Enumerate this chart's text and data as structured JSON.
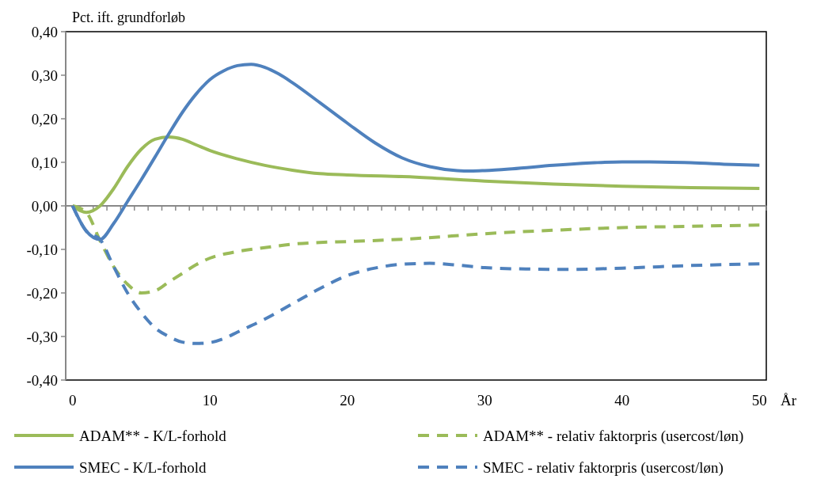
{
  "chart_data": {
    "type": "line",
    "ylabel": "Pct. ift. grundforløb",
    "xlabel": "År",
    "xlim": [
      -0.5,
      50.5
    ],
    "xticks": [
      0,
      10,
      20,
      30,
      40,
      50
    ],
    "ylim": [
      -0.4,
      0.4
    ],
    "yticks": [
      {
        "value": -0.4,
        "label": "-0,40"
      },
      {
        "value": -0.3,
        "label": "-0,30"
      },
      {
        "value": -0.2,
        "label": "-0,20"
      },
      {
        "value": -0.1,
        "label": "-0,10"
      },
      {
        "value": 0,
        "label": "0,00"
      },
      {
        "value": 0.1,
        "label": "0,10"
      },
      {
        "value": 0.2,
        "label": "0,20"
      },
      {
        "value": 0.3,
        "label": "0,30"
      },
      {
        "value": 0.4,
        "label": "0,40"
      }
    ],
    "legend": "bottom",
    "series": [
      {
        "name": "ADAM**  - K/L-forhold",
        "color": "#9bbb59",
        "line_style": "solid",
        "x": [
          0,
          1,
          2,
          3,
          4,
          5,
          6,
          7,
          8,
          9,
          10,
          12,
          14,
          16,
          18,
          20,
          25,
          30,
          35,
          40,
          45,
          50
        ],
        "values": [
          0,
          -0.015,
          0,
          0.04,
          0.09,
          0.13,
          0.153,
          0.158,
          0.153,
          0.14,
          0.127,
          0.108,
          0.093,
          0.082,
          0.074,
          0.071,
          0.066,
          0.057,
          0.05,
          0.045,
          0.042,
          0.04
        ]
      },
      {
        "name": "ADAM** - relativ faktorpris (usercost/løn)",
        "color": "#9bbb59",
        "line_style": "dashed",
        "x": [
          0,
          1,
          2,
          3,
          4,
          5,
          6,
          7,
          8,
          9,
          10,
          12,
          14,
          16,
          18,
          20,
          25,
          30,
          35,
          40,
          45,
          50
        ],
        "values": [
          0,
          -0.015,
          -0.08,
          -0.14,
          -0.18,
          -0.2,
          -0.195,
          -0.175,
          -0.155,
          -0.135,
          -0.12,
          -0.105,
          -0.096,
          -0.088,
          -0.084,
          -0.082,
          -0.075,
          -0.064,
          -0.056,
          -0.05,
          -0.047,
          -0.044
        ]
      },
      {
        "name": "SMEC - K/L-forhold",
        "color": "#4f81bd",
        "line_style": "solid",
        "x": [
          0,
          1,
          2,
          3,
          4,
          5,
          6,
          7,
          8,
          9,
          10,
          11,
          12,
          13,
          14,
          15,
          16,
          18,
          20,
          22,
          24,
          26,
          28,
          29,
          30,
          32,
          35,
          38,
          40,
          42,
          45,
          48,
          50
        ],
        "values": [
          0,
          -0.058,
          -0.077,
          -0.04,
          0.01,
          0.06,
          0.112,
          0.165,
          0.215,
          0.257,
          0.29,
          0.31,
          0.322,
          0.325,
          0.318,
          0.303,
          0.283,
          0.237,
          0.19,
          0.145,
          0.11,
          0.09,
          0.081,
          0.08,
          0.081,
          0.085,
          0.093,
          0.099,
          0.101,
          0.101,
          0.099,
          0.095,
          0.093
        ]
      },
      {
        "name": "SMEC - relativ faktorpris (usercost/løn)",
        "color": "#4f81bd",
        "line_style": "dashed",
        "x": [
          0,
          1,
          2,
          3,
          4,
          5,
          6,
          7,
          8,
          9,
          10,
          11,
          12,
          14,
          16,
          18,
          20,
          22,
          24,
          26,
          28,
          30,
          33,
          36,
          40,
          45,
          50
        ],
        "values": [
          0,
          -0.058,
          -0.077,
          -0.14,
          -0.2,
          -0.245,
          -0.28,
          -0.3,
          -0.313,
          -0.316,
          -0.314,
          -0.305,
          -0.29,
          -0.26,
          -0.225,
          -0.19,
          -0.16,
          -0.143,
          -0.134,
          -0.132,
          -0.136,
          -0.142,
          -0.145,
          -0.146,
          -0.143,
          -0.137,
          -0.133
        ]
      }
    ]
  }
}
